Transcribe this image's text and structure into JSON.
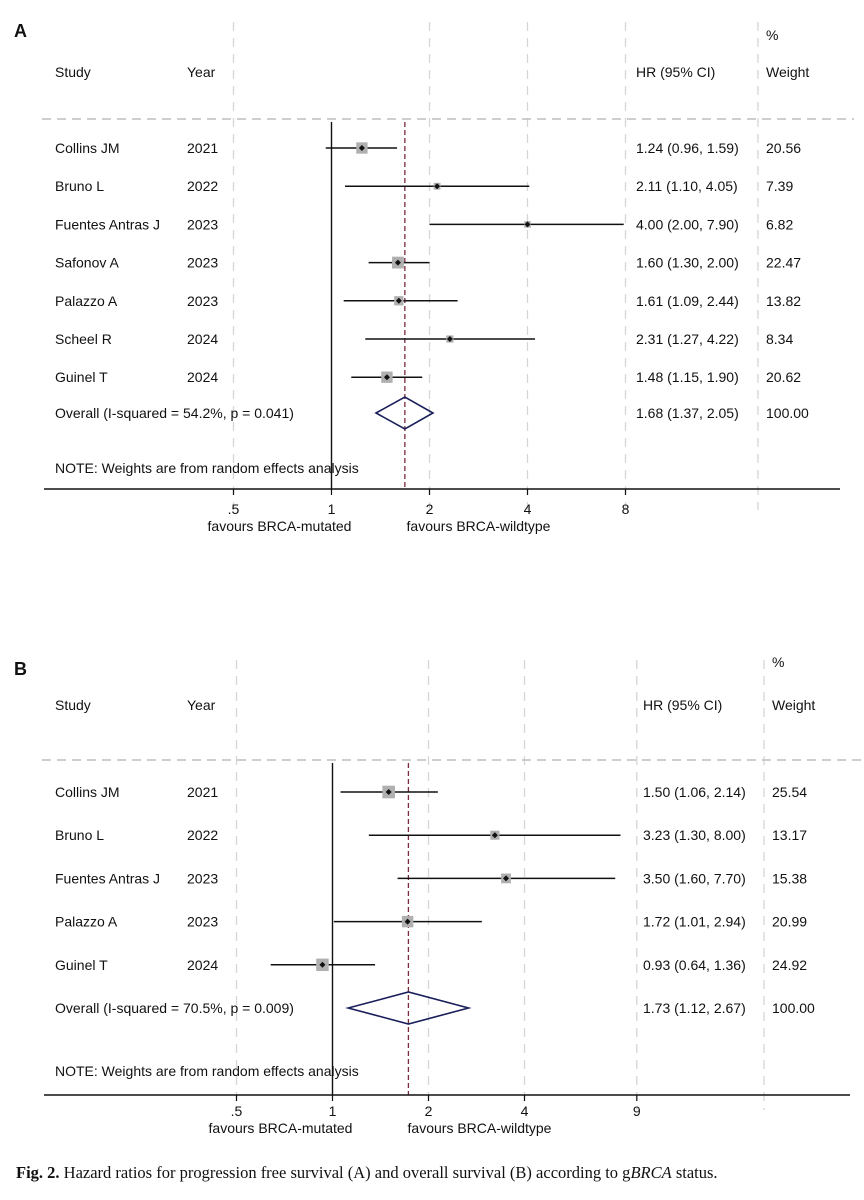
{
  "chart_data": [
    {
      "type": "forest",
      "panel_label": "A",
      "headers": {
        "study": "Study",
        "year": "Year",
        "hr": "HR (95% CI)",
        "pct": "%",
        "weight": "Weight"
      },
      "studies": [
        {
          "study": "Collins JM",
          "year": "2021",
          "hr": 1.24,
          "lo": 0.96,
          "hi": 1.59,
          "hr_text": "1.24 (0.96, 1.59)",
          "weight": "20.56"
        },
        {
          "study": "Bruno L",
          "year": "2022",
          "hr": 2.11,
          "lo": 1.1,
          "hi": 4.05,
          "hr_text": "2.11 (1.10, 4.05)",
          "weight": "7.39"
        },
        {
          "study": "Fuentes Antras J",
          "year": "2023",
          "hr": 4.0,
          "lo": 2.0,
          "hi": 7.9,
          "hr_text": "4.00 (2.00, 7.90)",
          "weight": "6.82"
        },
        {
          "study": "Safonov A",
          "year": "2023",
          "hr": 1.6,
          "lo": 1.3,
          "hi": 2.0,
          "hr_text": "1.60 (1.30, 2.00)",
          "weight": "22.47"
        },
        {
          "study": "Palazzo A",
          "year": "2023",
          "hr": 1.61,
          "lo": 1.09,
          "hi": 2.44,
          "hr_text": "1.61 (1.09, 2.44)",
          "weight": "13.82"
        },
        {
          "study": "Scheel R",
          "year": "2024",
          "hr": 2.31,
          "lo": 1.27,
          "hi": 4.22,
          "hr_text": "2.31 (1.27, 4.22)",
          "weight": "8.34"
        },
        {
          "study": "Guinel T",
          "year": "2024",
          "hr": 1.48,
          "lo": 1.15,
          "hi": 1.9,
          "hr_text": "1.48 (1.15, 1.90)",
          "weight": "20.62"
        }
      ],
      "overall": {
        "label": "Overall  (I-squared = 54.2%, p = 0.041)",
        "hr": 1.68,
        "lo": 1.37,
        "hi": 2.05,
        "hr_text": "1.68 (1.37, 2.05)",
        "weight": "100.00"
      },
      "note": "NOTE: Weights are from random effects analysis",
      "x_scale": "log",
      "x_ticks": [
        {
          "v": 0.5,
          "label": ".5"
        },
        {
          "v": 1,
          "label": "1"
        },
        {
          "v": 2,
          "label": "2"
        },
        {
          "v": 4,
          "label": "4"
        },
        {
          "v": 8,
          "label": "8"
        }
      ],
      "x_range": [
        0.25,
        16.8
      ],
      "left_label": "favours BRCA-mutated",
      "right_label": "favours BRCA-wildtype"
    },
    {
      "type": "forest",
      "panel_label": "B",
      "headers": {
        "study": "Study",
        "year": "Year",
        "hr": "HR (95% CI)",
        "pct": "%",
        "weight": "Weight"
      },
      "studies": [
        {
          "study": "Collins JM",
          "year": "2021",
          "hr": 1.5,
          "lo": 1.06,
          "hi": 2.14,
          "hr_text": "1.50 (1.06, 2.14)",
          "weight": "25.54"
        },
        {
          "study": "Bruno L",
          "year": "2022",
          "hr": 3.23,
          "lo": 1.3,
          "hi": 8.0,
          "hr_text": "3.23 (1.30, 8.00)",
          "weight": "13.17"
        },
        {
          "study": "Fuentes Antras J",
          "year": "2023",
          "hr": 3.5,
          "lo": 1.6,
          "hi": 7.7,
          "hr_text": "3.50 (1.60, 7.70)",
          "weight": "15.38"
        },
        {
          "study": "Palazzo A",
          "year": "2023",
          "hr": 1.72,
          "lo": 1.01,
          "hi": 2.94,
          "hr_text": "1.72 (1.01, 2.94)",
          "weight": "20.99"
        },
        {
          "study": "Guinel T",
          "year": "2024",
          "hr": 0.93,
          "lo": 0.64,
          "hi": 1.36,
          "hr_text": "0.93 (0.64, 1.36)",
          "weight": "24.92"
        }
      ],
      "overall": {
        "label": "Overall  (I-squared = 70.5%, p = 0.009)",
        "hr": 1.73,
        "lo": 1.12,
        "hi": 2.67,
        "hr_text": "1.73 (1.12, 2.67)",
        "weight": "100.00"
      },
      "note": "NOTE: Weights are from random effects analysis",
      "x_scale": "log",
      "x_ticks": [
        {
          "v": 0.5,
          "label": ".5"
        },
        {
          "v": 1,
          "label": "1"
        },
        {
          "v": 2,
          "label": "2"
        },
        {
          "v": 4,
          "label": "4"
        },
        {
          "v": 9,
          "label": "9"
        }
      ],
      "x_range": [
        0.25,
        17.5
      ],
      "left_label": "favours BRCA-mutated",
      "right_label": "favours BRCA-wildtype"
    }
  ],
  "caption": {
    "fig_label": "Fig. 2.",
    "text_before": " Hazard ratios for progression free survival (A) and overall survival (B) according to g",
    "text_italic": "BRCA",
    "text_after": " status."
  },
  "colors": {
    "diamond": "#1a1f5c",
    "ref_dashed": "#7a2a3a",
    "grid": "#d6d6d6",
    "box": "#b0b0b0"
  }
}
